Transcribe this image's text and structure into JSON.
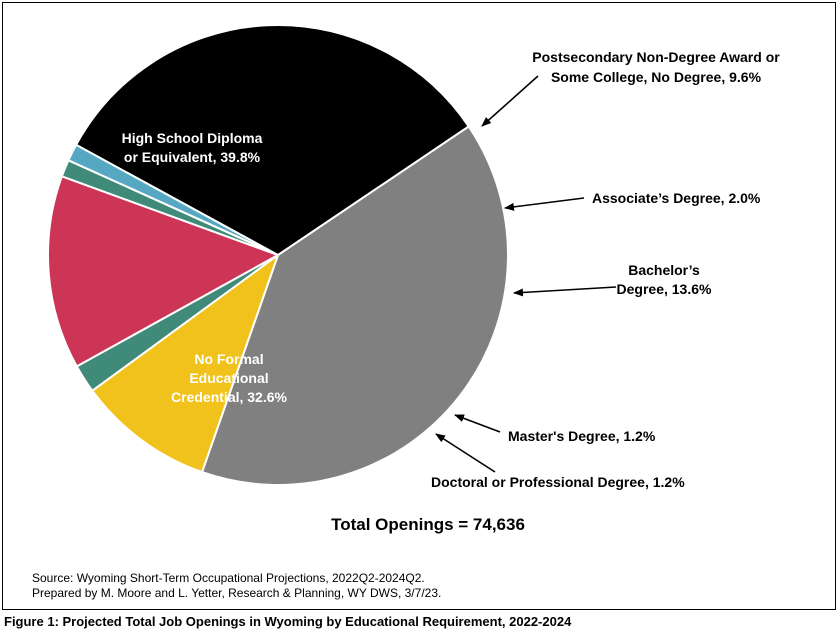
{
  "chart_data": {
    "type": "pie",
    "title": "",
    "slices": [
      {
        "label": "High School Diploma or Equivalent",
        "label_lines": [
          "High School Diploma",
          "or Equivalent, 39.8%"
        ],
        "value": 39.8,
        "color": "#808080",
        "label_style": "inside"
      },
      {
        "label": "Postsecondary Non-Degree Award or Some College, No Degree",
        "label_lines": [
          "Postsecondary Non-Degree Award or",
          "Some College, No Degree, 9.6%"
        ],
        "value": 9.6,
        "color": "#F2C21C",
        "label_style": "callout"
      },
      {
        "label": "Associate's Degree",
        "label_lines": [
          "Associate’s Degree, 2.0%"
        ],
        "value": 2.0,
        "color": "#3F8A78",
        "label_style": "callout"
      },
      {
        "label": "Bachelor's Degree",
        "label_lines": [
          "Bachelor’s",
          "Degree, 13.6%"
        ],
        "value": 13.6,
        "color": "#CC3556",
        "label_style": "callout"
      },
      {
        "label": "Master's Degree",
        "label_lines": [
          "Master's Degree, 1.2%"
        ],
        "value": 1.2,
        "color": "#3F8A78",
        "label_style": "callout"
      },
      {
        "label": "Doctoral or Professional Degree",
        "label_lines": [
          "Doctoral or Professional Degree, 1.2%"
        ],
        "value": 1.2,
        "color": "#56A8C2",
        "label_style": "callout"
      },
      {
        "label": "No Formal Educational Credential",
        "label_lines": [
          "No Formal",
          "Educational",
          "Credential, 32.6%"
        ],
        "value": 32.6,
        "color": "#000000",
        "label_style": "inside"
      }
    ],
    "total_label": "Total Openings = 74,636",
    "source_lines": [
      "Source: Wyoming Short-Term Occupational Projections, 2022Q2-2024Q2.",
      "Prepared by M. Moore and L. Yetter, Research & Planning, WY DWS, 3/7/23."
    ]
  },
  "caption": "Figure 1: Projected Total Job Openings in Wyoming by Educational Requirement, 2022-2024"
}
